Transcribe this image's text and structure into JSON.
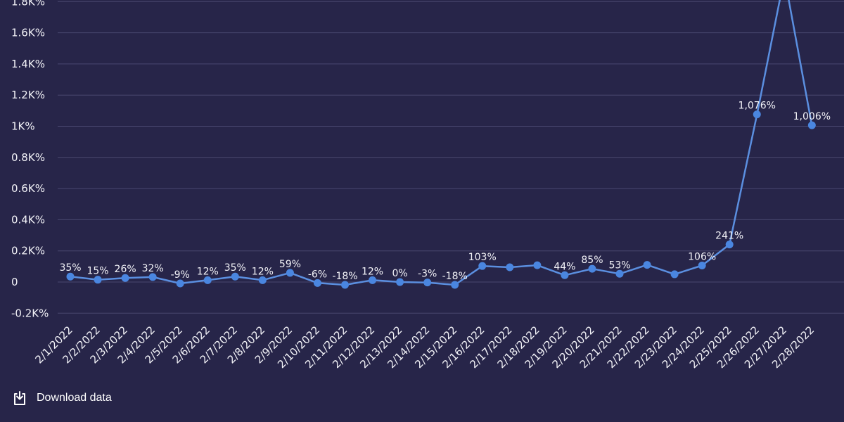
{
  "chart_data": {
    "type": "line",
    "x": [
      "2/1/2022",
      "2/2/2022",
      "2/3/2022",
      "2/4/2022",
      "2/5/2022",
      "2/6/2022",
      "2/7/2022",
      "2/8/2022",
      "2/9/2022",
      "2/10/2022",
      "2/11/2022",
      "2/12/2022",
      "2/13/2022",
      "2/14/2022",
      "2/15/2022",
      "2/16/2022",
      "2/17/2022",
      "2/18/2022",
      "2/19/2022",
      "2/20/2022",
      "2/21/2022",
      "2/22/2022",
      "2/23/2022",
      "2/24/2022",
      "2/25/2022",
      "2/26/2022",
      "2/27/2022",
      "2/28/2022"
    ],
    "series": [
      {
        "values": [
          35,
          15,
          26,
          32,
          -9,
          12,
          35,
          12,
          59,
          -6,
          -18,
          12,
          0,
          -3,
          -18,
          103,
          95,
          108,
          44,
          85,
          53,
          110,
          50,
          106,
          241,
          1076,
          1960,
          1006
        ],
        "labels": [
          "35%",
          "15%",
          "26%",
          "32%",
          "-9%",
          "12%",
          "35%",
          "12%",
          "59%",
          "-6%",
          "-18%",
          "12%",
          "0%",
          "-3%",
          "-18%",
          "103%",
          "",
          "",
          "44%",
          "85%",
          "53%",
          "",
          "",
          "106%",
          "241%",
          "1,076%",
          "",
          "1,006%"
        ]
      }
    ],
    "y_ticks": [
      {
        "value": -200,
        "label": "-0.2K%"
      },
      {
        "value": 0,
        "label": "0"
      },
      {
        "value": 200,
        "label": "0.2K%"
      },
      {
        "value": 400,
        "label": "0.4K%"
      },
      {
        "value": 600,
        "label": "0.6K%"
      },
      {
        "value": 800,
        "label": "0.8K%"
      },
      {
        "value": 1000,
        "label": "1K%"
      },
      {
        "value": 1200,
        "label": "1.2K%"
      },
      {
        "value": 1400,
        "label": "1.4K%"
      },
      {
        "value": 1600,
        "label": "1.6K%"
      },
      {
        "value": 1800,
        "label": "1.8K%"
      }
    ],
    "ylim": [
      -250,
      1900
    ],
    "grid": true,
    "line_color": "#5b8fe0",
    "point_color": "#4a86e0",
    "grid_color": "#4a4870"
  },
  "footer": {
    "download_label": "Download data",
    "download_icon": "download-icon"
  }
}
